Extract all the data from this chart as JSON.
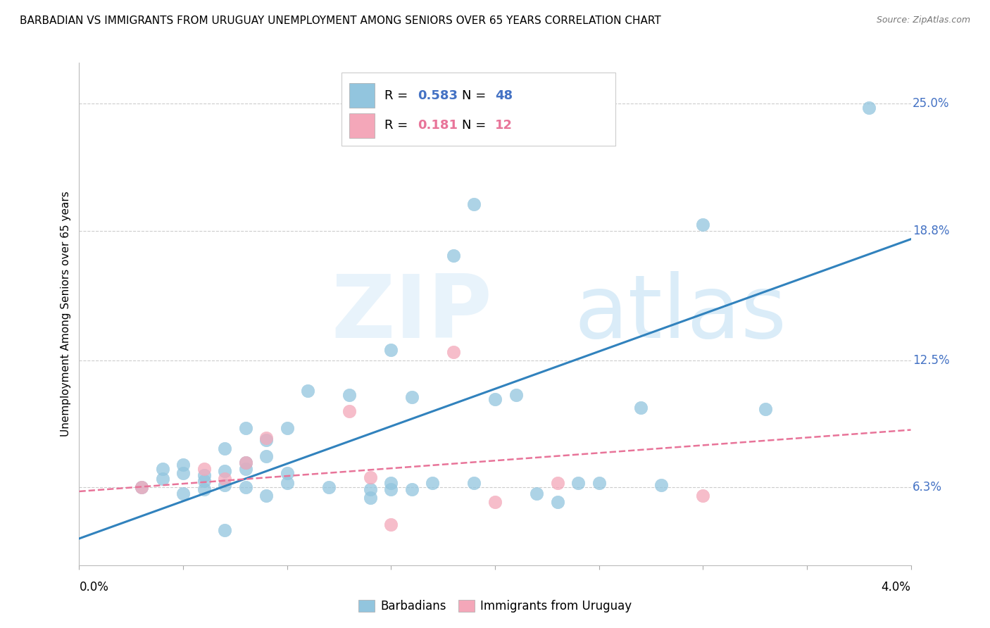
{
  "title": "BARBADIAN VS IMMIGRANTS FROM URUGUAY UNEMPLOYMENT AMONG SENIORS OVER 65 YEARS CORRELATION CHART",
  "source": "Source: ZipAtlas.com",
  "ylabel": "Unemployment Among Seniors over 65 years",
  "y_tick_labels": [
    "6.3%",
    "12.5%",
    "18.8%",
    "25.0%"
  ],
  "y_tick_values": [
    0.063,
    0.125,
    0.188,
    0.25
  ],
  "x_range": [
    0.0,
    0.04
  ],
  "y_range": [
    0.025,
    0.27
  ],
  "legend_blue_r": "0.583",
  "legend_blue_n": "48",
  "legend_pink_r": "0.181",
  "legend_pink_n": "12",
  "blue_color": "#92c5de",
  "pink_color": "#f4a7b9",
  "blue_line_color": "#3182bd",
  "pink_line_color": "#e87499",
  "blue_scatter_x": [
    0.003,
    0.004,
    0.004,
    0.005,
    0.005,
    0.005,
    0.006,
    0.006,
    0.006,
    0.007,
    0.007,
    0.007,
    0.007,
    0.008,
    0.008,
    0.008,
    0.008,
    0.009,
    0.009,
    0.009,
    0.01,
    0.01,
    0.01,
    0.011,
    0.012,
    0.013,
    0.014,
    0.014,
    0.015,
    0.015,
    0.015,
    0.016,
    0.016,
    0.017,
    0.018,
    0.019,
    0.019,
    0.02,
    0.021,
    0.022,
    0.023,
    0.024,
    0.025,
    0.027,
    0.028,
    0.03,
    0.033,
    0.038
  ],
  "blue_scatter_y": [
    0.063,
    0.067,
    0.072,
    0.06,
    0.07,
    0.074,
    0.062,
    0.066,
    0.069,
    0.042,
    0.064,
    0.071,
    0.082,
    0.063,
    0.072,
    0.075,
    0.092,
    0.059,
    0.078,
    0.086,
    0.065,
    0.07,
    0.092,
    0.11,
    0.063,
    0.108,
    0.062,
    0.058,
    0.13,
    0.062,
    0.065,
    0.062,
    0.107,
    0.065,
    0.176,
    0.201,
    0.065,
    0.106,
    0.108,
    0.06,
    0.056,
    0.065,
    0.065,
    0.102,
    0.064,
    0.191,
    0.101,
    0.248
  ],
  "pink_scatter_x": [
    0.003,
    0.006,
    0.007,
    0.008,
    0.009,
    0.013,
    0.014,
    0.015,
    0.018,
    0.02,
    0.023,
    0.03
  ],
  "pink_scatter_y": [
    0.063,
    0.072,
    0.067,
    0.075,
    0.087,
    0.1,
    0.068,
    0.045,
    0.129,
    0.056,
    0.065,
    0.059
  ],
  "blue_line_x": [
    0.0,
    0.04
  ],
  "blue_line_y": [
    0.038,
    0.184
  ],
  "pink_line_x": [
    0.0,
    0.04
  ],
  "pink_line_y": [
    0.061,
    0.091
  ],
  "x_ticks": [
    0.0,
    0.005,
    0.01,
    0.015,
    0.02,
    0.025,
    0.03,
    0.035,
    0.04
  ]
}
